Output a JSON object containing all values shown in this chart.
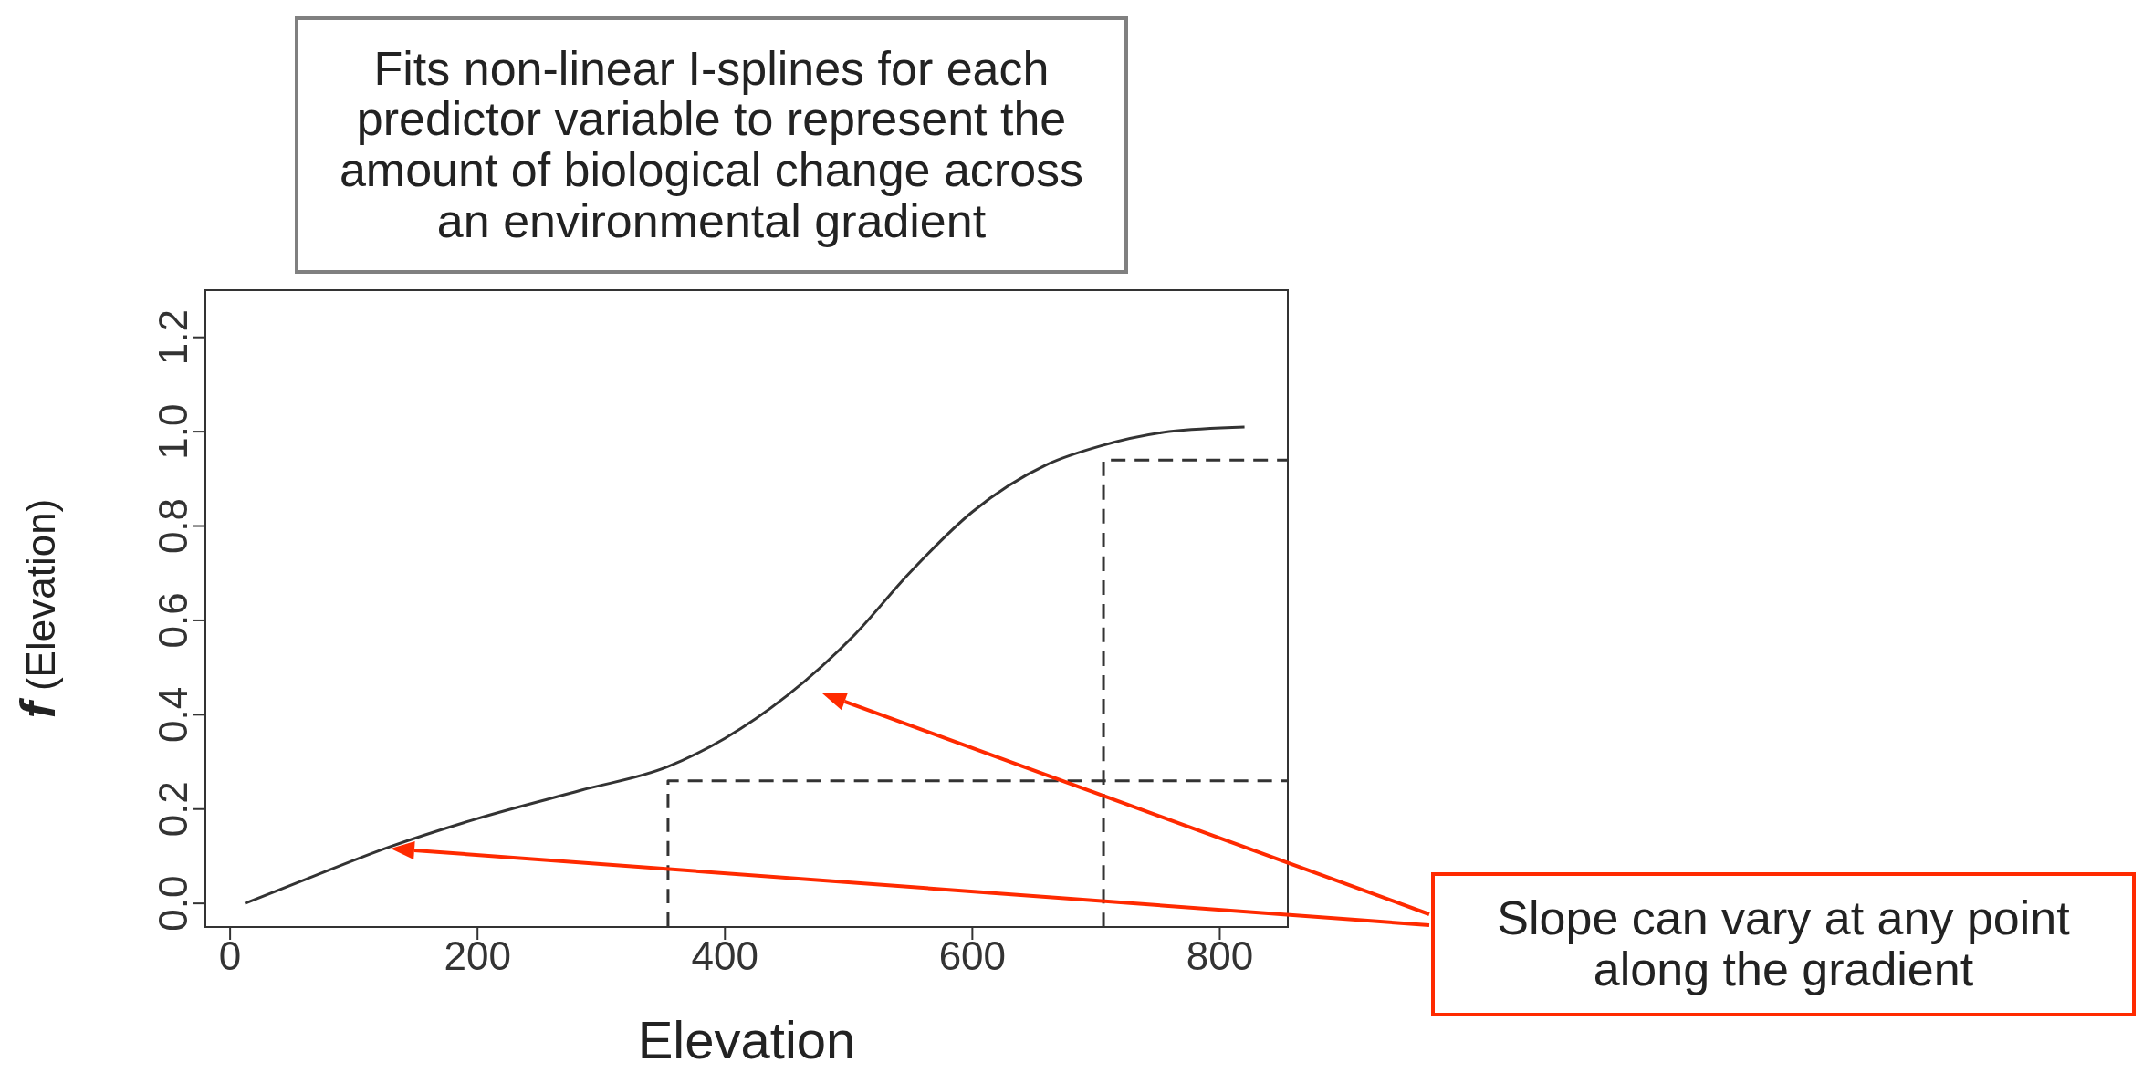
{
  "chart_data": {
    "type": "line",
    "xlabel": "Elevation",
    "ylabel": "f (Elevation)",
    "annotations": [
      "Fits non-linear I-splines for each predictor variable to represent the amount of biological change across an environmental gradient",
      "Slope can vary at any point along the gradient"
    ],
    "xlim": [
      -20,
      855
    ],
    "ylim": [
      -0.05,
      1.3
    ],
    "xticks": [
      0,
      200,
      400,
      600,
      800
    ],
    "yticks": [
      {
        "value": 0,
        "label": "0.0"
      },
      {
        "value": 0.2,
        "label": "0.2"
      },
      {
        "value": 0.4,
        "label": "0.4"
      },
      {
        "value": 0.6,
        "label": "0.6"
      },
      {
        "value": 0.8,
        "label": "0.8"
      },
      {
        "value": 1,
        "label": "1.0"
      },
      {
        "value": 1.2,
        "label": "1.2"
      }
    ],
    "grid": false,
    "marker": "none",
    "series": [
      {
        "color": "#333333",
        "line_style": "solid",
        "x": [
          12,
          60,
          129,
          200,
          284,
          354,
          400,
          450,
          505,
          549,
          600,
          660,
          704,
          759,
          820
        ],
        "values": [
          0,
          0.05,
          0.12,
          0.18,
          0.24,
          0.29,
          0.35,
          0.44,
          0.57,
          0.7,
          0.83,
          0.93,
          0.97,
          1.0,
          1.01
        ]
      },
      {
        "color": "#333333",
        "line_style": "dashed",
        "x": [
          354,
          354,
          855
        ],
        "values": [
          -0.05,
          0.26,
          0.26
        ]
      },
      {
        "color": "#333333",
        "line_style": "dashed",
        "x": [
          706,
          706,
          855
        ],
        "values": [
          -0.05,
          0.94,
          0.94
        ]
      }
    ]
  }
}
